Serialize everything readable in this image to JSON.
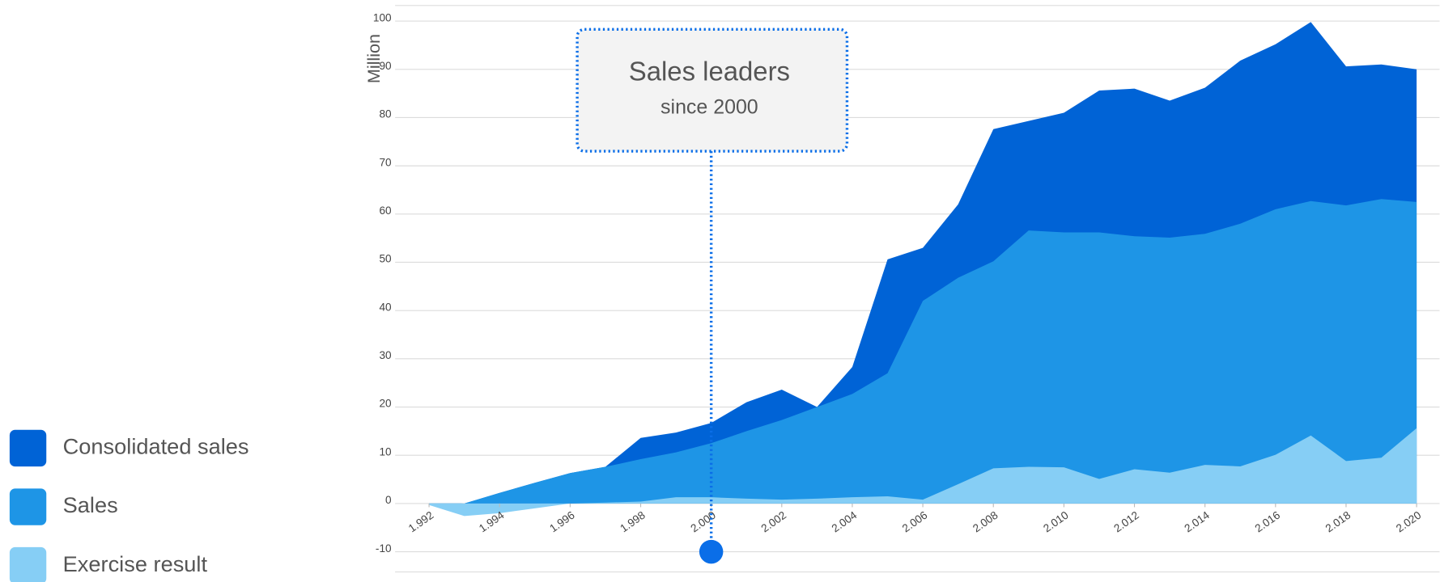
{
  "chart_data": {
    "type": "area",
    "y_label": "Million",
    "x": [
      1992,
      1993,
      1994,
      1995,
      1996,
      1997,
      1998,
      1999,
      2000,
      2001,
      2002,
      2003,
      2004,
      2005,
      2006,
      2007,
      2008,
      2009,
      2010,
      2011,
      2012,
      2013,
      2014,
      2015,
      2016,
      2017,
      2018,
      2019,
      2020
    ],
    "series": [
      {
        "name": "Consolidated sales",
        "color": "#0063d6",
        "values": [
          -0.2,
          0,
          2.2,
          4.3,
          6.3,
          7.6,
          13.6,
          14.7,
          16.7,
          21,
          23.6,
          20,
          28.3,
          50.6,
          53,
          62,
          77.6,
          79.3,
          81,
          85.6,
          86,
          83.5,
          86.2,
          91.8,
          95.2,
          99.8,
          90.6,
          91,
          90
        ]
      },
      {
        "name": "Sales",
        "color": "#1e95e6",
        "values": [
          -0.2,
          0,
          2.2,
          4.3,
          6.3,
          7.6,
          9.2,
          10.6,
          12.5,
          15,
          17.3,
          20,
          22.7,
          27,
          42,
          46.8,
          50.2,
          56.6,
          56.2,
          56.2,
          55.4,
          55.1,
          55.9,
          58,
          61,
          62.7,
          61.8,
          63.1,
          62.5
        ]
      },
      {
        "name": "Exercise result",
        "color": "#86cef5",
        "values": [
          -0.3,
          -2.6,
          -2,
          -1,
          0,
          0.2,
          0.4,
          1.3,
          1.3,
          1,
          0.8,
          1,
          1.3,
          1.5,
          0.8,
          4,
          7.3,
          7.6,
          7.5,
          5.1,
          7.1,
          6.4,
          8,
          7.7,
          10.1,
          14.1,
          8.8,
          9.5,
          15.6
        ]
      }
    ],
    "xlim": [
      1992,
      2020
    ],
    "xticks": [
      {
        "value": 1992,
        "label": "1.992"
      },
      {
        "value": 1994,
        "label": "1.994"
      },
      {
        "value": 1996,
        "label": "1.996"
      },
      {
        "value": 1998,
        "label": "1.998"
      },
      {
        "value": 2000,
        "label": "2.000"
      },
      {
        "value": 2002,
        "label": "2.002"
      },
      {
        "value": 2004,
        "label": "2.004"
      },
      {
        "value": 2006,
        "label": "2.006"
      },
      {
        "value": 2008,
        "label": "2.008"
      },
      {
        "value": 2010,
        "label": "2.010"
      },
      {
        "value": 2012,
        "label": "2.012"
      },
      {
        "value": 2014,
        "label": "2.014"
      },
      {
        "value": 2016,
        "label": "2.016"
      },
      {
        "value": 2018,
        "label": "2.018"
      },
      {
        "value": 2020,
        "label": "2.020"
      }
    ],
    "ylim": [
      -10,
      100
    ],
    "yticks": [
      -10,
      0,
      10,
      20,
      30,
      40,
      50,
      60,
      70,
      80,
      90,
      100
    ],
    "grid": true,
    "legend": "bottom-left",
    "annotation": {
      "text": "Sales leaders",
      "subtext": "since 2000",
      "x": 2000,
      "y": -10,
      "color": "#0a6ee8"
    }
  }
}
